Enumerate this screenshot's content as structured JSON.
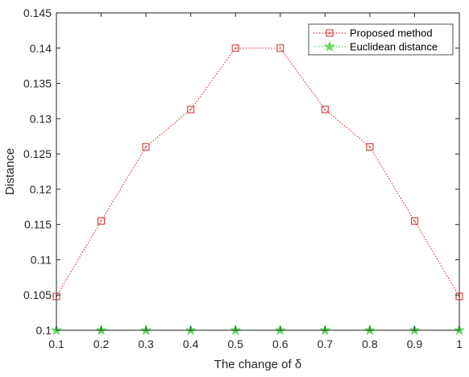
{
  "chart_data": {
    "type": "line",
    "x": [
      0.1,
      0.2,
      0.3,
      0.4,
      0.5,
      0.6,
      0.7,
      0.8,
      0.9,
      1
    ],
    "series": [
      {
        "name": "Proposed method",
        "values": [
          0.1048,
          0.1155,
          0.126,
          0.1313,
          0.14,
          0.14,
          0.1313,
          0.126,
          0.1155,
          0.1048
        ],
        "color": "#d93a3a",
        "marker": "square",
        "line_style": "dotted"
      },
      {
        "name": "Euclidean distance",
        "values": [
          0.1,
          0.1,
          0.1,
          0.1,
          0.1,
          0.1,
          0.1,
          0.1,
          0.1,
          0.1
        ],
        "color": "#5fdc5f",
        "marker": "star",
        "line_style": "dotted"
      }
    ],
    "xlabel": "The change of δ",
    "ylabel": "Distance",
    "xlim": [
      0.1,
      1
    ],
    "ylim": [
      0.1,
      0.145
    ],
    "x_ticks": [
      "0.1",
      "0.2",
      "0.3",
      "0.4",
      "0.5",
      "0.6",
      "0.7",
      "0.8",
      "0.9",
      "1"
    ],
    "y_ticks": [
      "0.1",
      "0.105",
      "0.11",
      "0.115",
      "0.12",
      "0.125",
      "0.13",
      "0.135",
      "0.14",
      "0.145"
    ],
    "grid": false,
    "legend_position": "top-right"
  }
}
